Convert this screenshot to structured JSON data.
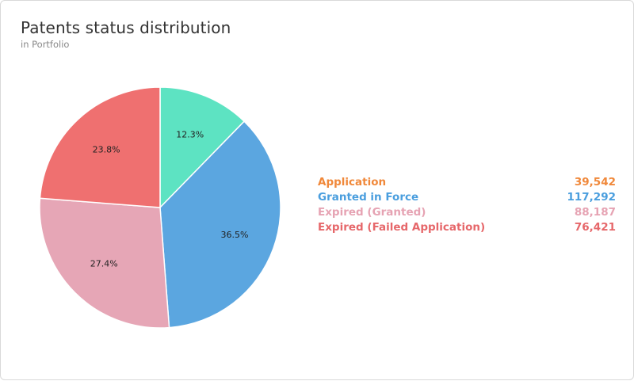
{
  "header": {
    "title": "Patents status distribution",
    "subtitle": "in Portfolio"
  },
  "chart_data": {
    "type": "pie",
    "title": "Patents status distribution",
    "subtitle": "in Portfolio",
    "legend_position": "right",
    "slices": [
      {
        "name": "Application",
        "value": 39542,
        "value_label": "39,542",
        "percent_label": "12.3%",
        "slice_color": "#5de3c2",
        "legend_color": "#f0883a"
      },
      {
        "name": "Granted in Force",
        "value": 117292,
        "value_label": "117,292",
        "percent_label": "36.5%",
        "slice_color": "#5ba6e0",
        "legend_color": "#4a9ede"
      },
      {
        "name": "Expired (Granted)",
        "value": 88187,
        "value_label": "88,187",
        "percent_label": "27.4%",
        "slice_color": "#e6a6b6",
        "legend_color": "#e6a3b3"
      },
      {
        "name": "Expired (Failed Application)",
        "value": 76421,
        "value_label": "76,421",
        "percent_label": "23.8%",
        "slice_color": "#ef7070",
        "legend_color": "#e6676a"
      }
    ]
  }
}
